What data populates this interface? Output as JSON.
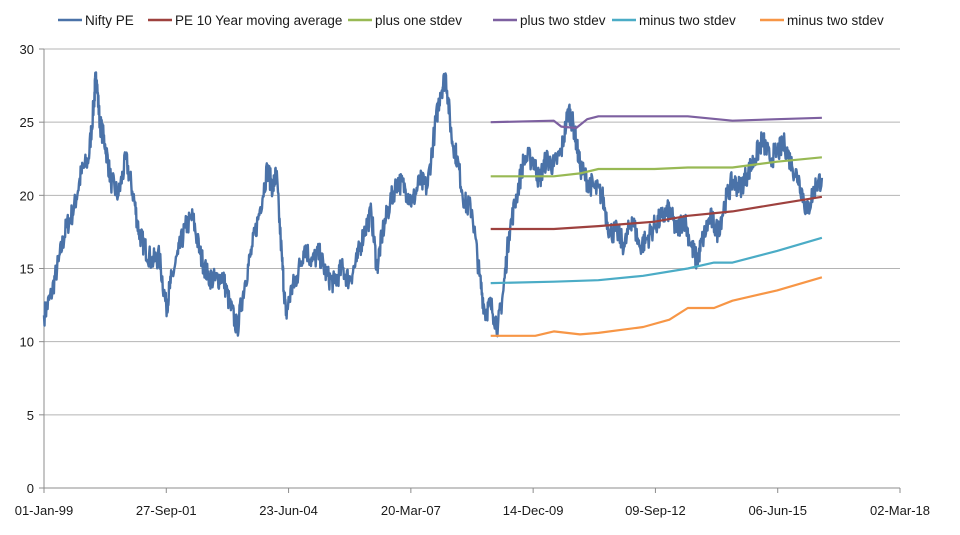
{
  "chart_data": {
    "type": "line",
    "title": "",
    "xlabel": "",
    "ylabel": "",
    "ylim": [
      0,
      30
    ],
    "yticks": [
      0,
      5,
      10,
      15,
      20,
      25,
      30
    ],
    "xlim": [
      "1999-01-01",
      "2018-03-02"
    ],
    "xticks": [
      {
        "label": "01-Jan-99",
        "date": "1999-01-01"
      },
      {
        "label": "27-Sep-01",
        "date": "2001-09-27"
      },
      {
        "label": "23-Jun-04",
        "date": "2004-06-23"
      },
      {
        "label": "20-Mar-07",
        "date": "2007-03-20"
      },
      {
        "label": "14-Dec-09",
        "date": "2009-12-14"
      },
      {
        "label": "09-Sep-12",
        "date": "2012-09-09"
      },
      {
        "label": "06-Jun-15",
        "date": "2015-06-06"
      },
      {
        "label": "02-Mar-18",
        "date": "2018-03-02"
      }
    ],
    "grid": "horizontal",
    "legend_position": "top",
    "series": [
      {
        "name": "Nifty PE",
        "color": "#4a72a8",
        "points": [
          [
            "1999-01-01",
            11.8
          ],
          [
            "1999-03-01",
            13.2
          ],
          [
            "1999-05-01",
            15.5
          ],
          [
            "1999-07-01",
            17.8
          ],
          [
            "1999-09-01",
            19.0
          ],
          [
            "1999-11-01",
            21.5
          ],
          [
            "2000-01-01",
            22.5
          ],
          [
            "2000-02-15",
            26.5
          ],
          [
            "2000-03-01",
            28.4
          ],
          [
            "2000-04-01",
            25.0
          ],
          [
            "2000-05-15",
            23.5
          ],
          [
            "2000-07-01",
            21.0
          ],
          [
            "2000-09-01",
            20.0
          ],
          [
            "2000-11-01",
            22.5
          ],
          [
            "2001-01-01",
            20.0
          ],
          [
            "2001-02-15",
            17.5
          ],
          [
            "2001-04-01",
            16.5
          ],
          [
            "2001-06-01",
            15.5
          ],
          [
            "2001-08-01",
            15.8
          ],
          [
            "2001-09-27",
            12.3
          ],
          [
            "2001-11-01",
            14.0
          ],
          [
            "2002-01-01",
            16.0
          ],
          [
            "2002-03-01",
            17.8
          ],
          [
            "2002-05-01",
            18.5
          ],
          [
            "2002-07-01",
            16.0
          ],
          [
            "2002-09-01",
            14.5
          ],
          [
            "2002-11-01",
            14.2
          ],
          [
            "2003-01-01",
            14.5
          ],
          [
            "2003-03-01",
            12.5
          ],
          [
            "2003-05-01",
            10.9
          ],
          [
            "2003-07-01",
            14.0
          ],
          [
            "2003-09-01",
            16.5
          ],
          [
            "2003-11-01",
            19.0
          ],
          [
            "2004-01-01",
            21.8
          ],
          [
            "2004-02-15",
            20.5
          ],
          [
            "2004-03-15",
            21.5
          ],
          [
            "2004-05-01",
            15.5
          ],
          [
            "2004-06-01",
            11.8
          ],
          [
            "2004-07-15",
            13.5
          ],
          [
            "2004-09-01",
            14.5
          ],
          [
            "2004-11-01",
            16.5
          ],
          [
            "2005-01-01",
            15.5
          ],
          [
            "2005-03-01",
            16.0
          ],
          [
            "2005-05-01",
            14.5
          ],
          [
            "2005-07-01",
            14.0
          ],
          [
            "2005-09-01",
            15.0
          ],
          [
            "2005-11-01",
            14.2
          ],
          [
            "2006-01-01",
            15.5
          ],
          [
            "2006-03-01",
            17.5
          ],
          [
            "2006-05-01",
            18.8
          ],
          [
            "2006-06-15",
            15.0
          ],
          [
            "2006-08-01",
            17.5
          ],
          [
            "2006-10-01",
            19.5
          ],
          [
            "2006-12-01",
            21.0
          ],
          [
            "2007-02-01",
            20.5
          ],
          [
            "2007-04-01",
            19.5
          ],
          [
            "2007-06-01",
            21.0
          ],
          [
            "2007-08-01",
            20.5
          ],
          [
            "2007-10-01",
            24.5
          ],
          [
            "2007-11-15",
            27.0
          ],
          [
            "2008-01-01",
            28.2
          ],
          [
            "2008-02-15",
            24.0
          ],
          [
            "2008-04-01",
            22.5
          ],
          [
            "2008-06-01",
            19.5
          ],
          [
            "2008-08-01",
            19.0
          ],
          [
            "2008-10-01",
            14.5
          ],
          [
            "2008-11-15",
            12.0
          ],
          [
            "2009-01-01",
            12.5
          ],
          [
            "2009-03-01",
            11.0
          ],
          [
            "2009-04-15",
            13.5
          ],
          [
            "2009-06-01",
            17.5
          ],
          [
            "2009-08-01",
            20.0
          ],
          [
            "2009-10-01",
            22.5
          ],
          [
            "2009-12-14",
            22.5
          ],
          [
            "2010-02-01",
            21.0
          ],
          [
            "2010-04-01",
            22.5
          ],
          [
            "2010-06-01",
            22.0
          ],
          [
            "2010-08-01",
            23.0
          ],
          [
            "2010-10-01",
            25.9
          ],
          [
            "2010-11-15",
            24.5
          ],
          [
            "2011-01-01",
            22.0
          ],
          [
            "2011-03-01",
            21.0
          ],
          [
            "2011-05-01",
            20.5
          ],
          [
            "2011-07-01",
            20.0
          ],
          [
            "2011-09-01",
            17.5
          ],
          [
            "2011-11-01",
            17.5
          ],
          [
            "2012-01-01",
            16.5
          ],
          [
            "2012-03-01",
            18.5
          ],
          [
            "2012-05-01",
            16.5
          ],
          [
            "2012-07-01",
            17.0
          ],
          [
            "2012-09-09",
            18.0
          ],
          [
            "2012-11-01",
            18.5
          ],
          [
            "2013-01-01",
            19.0
          ],
          [
            "2013-03-01",
            17.5
          ],
          [
            "2013-05-01",
            18.5
          ],
          [
            "2013-07-01",
            16.5
          ],
          [
            "2013-08-15",
            15.5
          ],
          [
            "2013-10-01",
            17.0
          ],
          [
            "2013-12-01",
            18.5
          ],
          [
            "2014-02-01",
            17.5
          ],
          [
            "2014-04-01",
            19.5
          ],
          [
            "2014-06-01",
            21.0
          ],
          [
            "2014-08-01",
            20.5
          ],
          [
            "2014-10-01",
            21.5
          ],
          [
            "2014-12-01",
            22.5
          ],
          [
            "2015-02-01",
            23.8
          ],
          [
            "2015-04-01",
            22.5
          ],
          [
            "2015-06-06",
            23.0
          ],
          [
            "2015-08-01",
            23.5
          ],
          [
            "2015-10-01",
            22.0
          ],
          [
            "2015-12-01",
            21.0
          ],
          [
            "2016-02-01",
            18.8
          ],
          [
            "2016-04-01",
            20.5
          ],
          [
            "2016-06-01",
            21.2
          ]
        ]
      },
      {
        "name": "PE 10 Year moving average",
        "color": "#9e413e",
        "points": [
          [
            "2009-01-01",
            17.7
          ],
          [
            "2010-06-01",
            17.7
          ],
          [
            "2011-06-01",
            17.9
          ],
          [
            "2012-09-01",
            18.2
          ],
          [
            "2013-06-01",
            18.6
          ],
          [
            "2014-06-01",
            18.9
          ],
          [
            "2015-06-01",
            19.4
          ],
          [
            "2016-06-01",
            19.9
          ]
        ]
      },
      {
        "name": "plus one stdev",
        "color": "#98b954",
        "points": [
          [
            "2009-01-01",
            21.3
          ],
          [
            "2010-06-01",
            21.3
          ],
          [
            "2011-01-01",
            21.5
          ],
          [
            "2011-06-01",
            21.8
          ],
          [
            "2012-09-01",
            21.8
          ],
          [
            "2013-06-01",
            21.9
          ],
          [
            "2014-06-01",
            21.9
          ],
          [
            "2015-06-01",
            22.3
          ],
          [
            "2016-06-01",
            22.6
          ]
        ]
      },
      {
        "name": "plus two stdev",
        "color": "#7d60a0",
        "points": [
          [
            "2009-01-01",
            25.0
          ],
          [
            "2010-06-01",
            25.1
          ],
          [
            "2010-08-01",
            24.7
          ],
          [
            "2010-12-01",
            24.6
          ],
          [
            "2011-03-01",
            25.2
          ],
          [
            "2011-06-01",
            25.4
          ],
          [
            "2013-06-01",
            25.4
          ],
          [
            "2014-06-01",
            25.1
          ],
          [
            "2015-06-01",
            25.2
          ],
          [
            "2016-06-01",
            25.3
          ]
        ]
      },
      {
        "name": "minus two stdev",
        "color": "#4bacc6",
        "points": [
          [
            "2009-01-01",
            14.0
          ],
          [
            "2010-06-01",
            14.1
          ],
          [
            "2011-06-01",
            14.2
          ],
          [
            "2012-06-01",
            14.5
          ],
          [
            "2013-06-01",
            15.0
          ],
          [
            "2014-01-01",
            15.4
          ],
          [
            "2014-06-01",
            15.4
          ],
          [
            "2015-06-01",
            16.2
          ],
          [
            "2016-06-01",
            17.1
          ]
        ]
      },
      {
        "name": "minus two stdev",
        "color": "#f79646",
        "points": [
          [
            "2009-01-01",
            10.4
          ],
          [
            "2010-01-01",
            10.4
          ],
          [
            "2010-06-01",
            10.7
          ],
          [
            "2011-01-01",
            10.5
          ],
          [
            "2011-06-01",
            10.6
          ],
          [
            "2012-06-01",
            11.0
          ],
          [
            "2013-01-01",
            11.5
          ],
          [
            "2013-06-01",
            12.3
          ],
          [
            "2014-01-01",
            12.3
          ],
          [
            "2014-06-01",
            12.8
          ],
          [
            "2015-06-01",
            13.5
          ],
          [
            "2016-06-01",
            14.4
          ]
        ]
      }
    ]
  }
}
